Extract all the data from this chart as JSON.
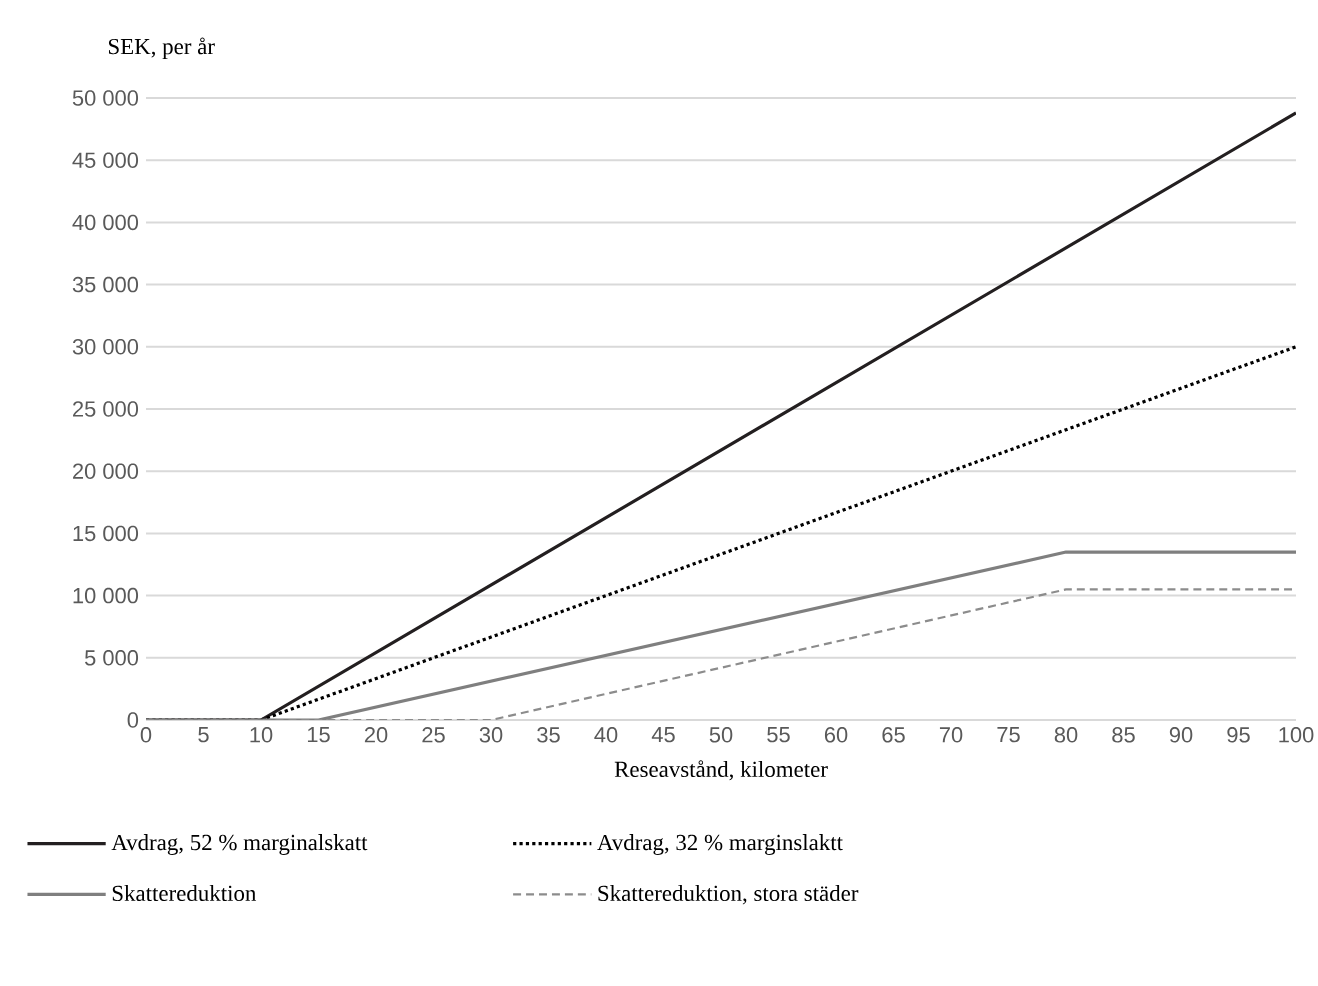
{
  "chart_data": {
    "type": "line",
    "ylabel": "SEK, per år",
    "xlabel": "Reseavstånd, kilometer",
    "xlim": [
      0,
      100
    ],
    "xticks": [
      0,
      5,
      10,
      15,
      20,
      25,
      30,
      35,
      40,
      45,
      50,
      55,
      60,
      65,
      70,
      75,
      80,
      85,
      90,
      95,
      100
    ],
    "ylim": [
      0,
      50000
    ],
    "yticks": [
      0,
      {
        "value": 5000,
        "label": "5 000"
      },
      {
        "value": 10000,
        "label": "10 000"
      },
      {
        "value": 15000,
        "label": "15 000"
      },
      {
        "value": 20000,
        "label": "20 000"
      },
      {
        "value": 25000,
        "label": "25 000"
      },
      {
        "value": 30000,
        "label": "30 000"
      },
      {
        "value": 35000,
        "label": "35 000"
      },
      {
        "value": 40000,
        "label": "40 000"
      },
      {
        "value": 45000,
        "label": "45 000"
      },
      {
        "value": 50000,
        "label": "50 000"
      }
    ],
    "grid": "y",
    "legend": "bottom",
    "series": [
      {
        "name": "Avdrag, 52 % marginalskatt",
        "color": "#231f20",
        "line_style": "solid",
        "x": [
          0,
          10,
          100
        ],
        "values": [
          0,
          0,
          48800
        ]
      },
      {
        "name": "Avdrag, 32 % marginslaktt",
        "color": "#000000",
        "line_style": "dotted",
        "x": [
          0,
          10,
          100
        ],
        "values": [
          0,
          0,
          30000
        ]
      },
      {
        "name": "Skattereduktion",
        "color": "#7f7f7f",
        "line_style": "solid",
        "x": [
          0,
          15,
          80,
          100
        ],
        "values": [
          0,
          0,
          13500,
          13500
        ]
      },
      {
        "name": "Skattereduktion, stora städer",
        "color": "#8c8c8c",
        "line_style": "dashed",
        "x": [
          0,
          30,
          80,
          100
        ],
        "values": [
          0,
          0,
          10500,
          10500
        ]
      }
    ]
  }
}
